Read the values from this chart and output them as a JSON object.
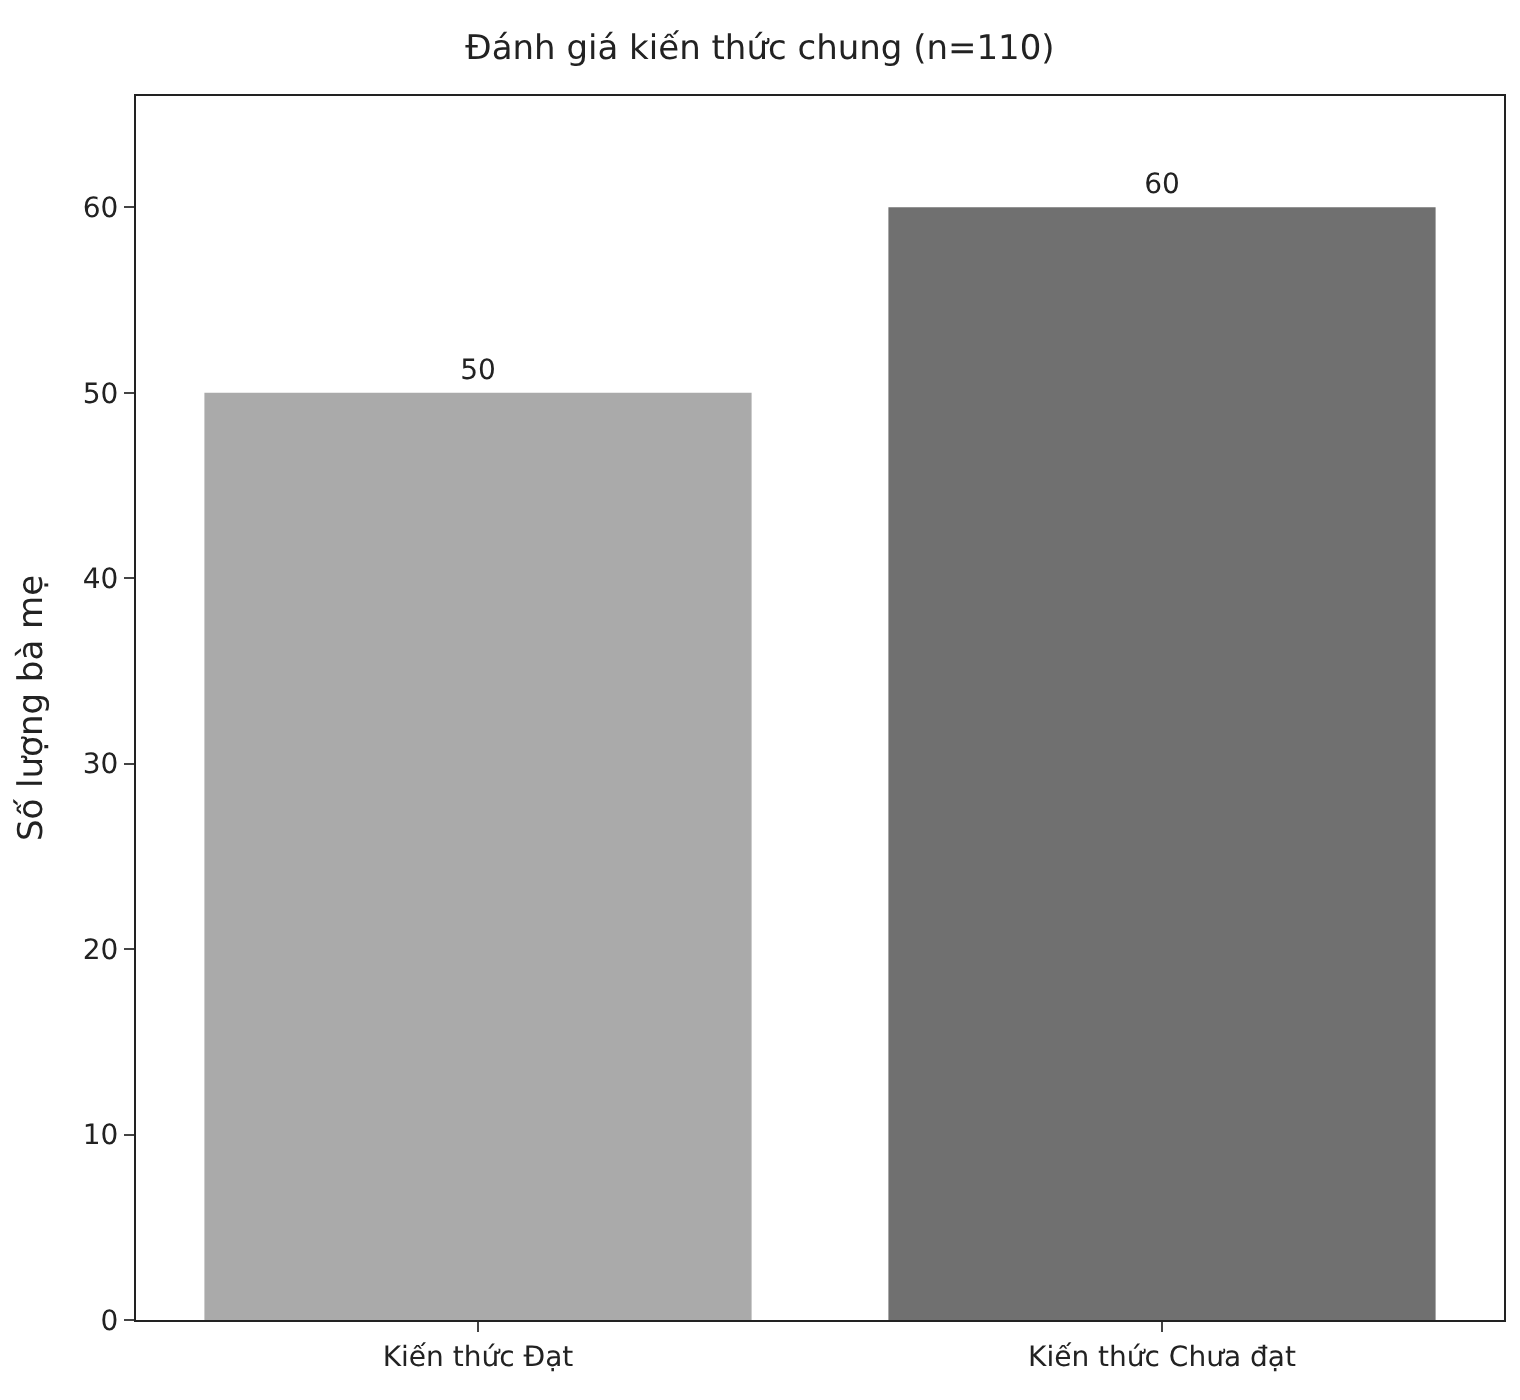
{
  "chart_data": {
    "type": "bar",
    "title": "Đánh giá kiến thức chung (n=110)",
    "ylabel": "Số lượng bà mẹ",
    "categories": [
      "Kiến thức Đạt",
      "Kiến thức Chưa đạt"
    ],
    "values": [
      50,
      60
    ],
    "colors": [
      "#aaaaaa",
      "#707070"
    ],
    "ylim": [
      0,
      66
    ],
    "yticks": [
      0,
      10,
      20,
      30,
      40,
      50,
      60
    ],
    "data_labels": true
  }
}
